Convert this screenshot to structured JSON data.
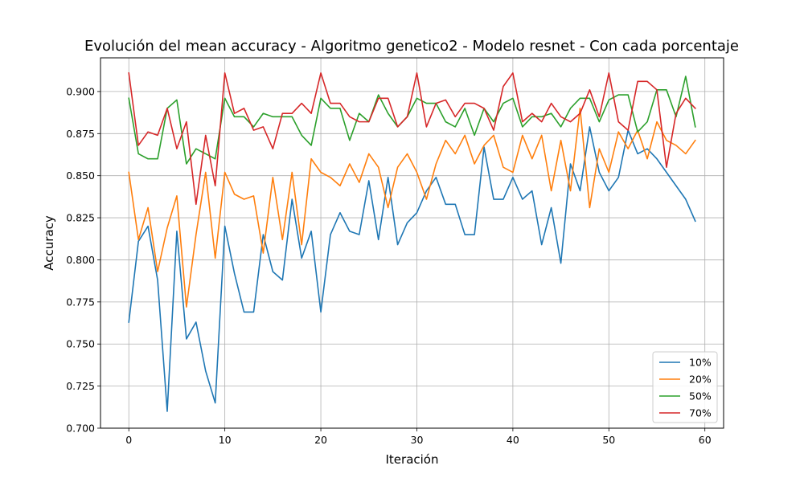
{
  "chart_data": {
    "type": "line",
    "title": "Evolución del mean accuracy - Algoritmo genetico2 - Modelo resnet - Con cada porcentaje",
    "xlabel": "Iteración",
    "ylabel": "Accuracy",
    "xlim": [
      -2.95,
      61.95
    ],
    "ylim": [
      0.7,
      0.92
    ],
    "xticks": [
      0,
      10,
      20,
      30,
      40,
      50,
      60
    ],
    "xtick_labels": [
      "0",
      "10",
      "20",
      "30",
      "40",
      "50",
      "60"
    ],
    "yticks": [
      0.7,
      0.725,
      0.75,
      0.775,
      0.8,
      0.825,
      0.85,
      0.875,
      0.9
    ],
    "ytick_labels": [
      "0.700",
      "0.725",
      "0.750",
      "0.775",
      "0.800",
      "0.825",
      "0.850",
      "0.875",
      "0.900"
    ],
    "grid": true,
    "legend_position": "bottom-right",
    "x": [
      0,
      1,
      2,
      3,
      4,
      5,
      6,
      7,
      8,
      9,
      10,
      11,
      12,
      13,
      14,
      15,
      16,
      17,
      18,
      19,
      20,
      21,
      22,
      23,
      24,
      25,
      26,
      27,
      28,
      29,
      30,
      31,
      32,
      33,
      34,
      35,
      36,
      37,
      38,
      39,
      40,
      41,
      42,
      43,
      44,
      45,
      46,
      47,
      48,
      49,
      50,
      51,
      52,
      53,
      54,
      55,
      56,
      57,
      58,
      59
    ],
    "series": [
      {
        "name": "10%",
        "color": "#1f77b4",
        "values": [
          0.763,
          0.811,
          0.82,
          0.788,
          0.71,
          0.817,
          0.753,
          0.763,
          0.734,
          0.715,
          0.82,
          0.792,
          0.769,
          0.769,
          0.815,
          0.793,
          0.788,
          0.836,
          0.801,
          0.817,
          0.769,
          0.815,
          0.828,
          0.817,
          0.815,
          0.847,
          0.812,
          0.849,
          0.809,
          0.822,
          0.828,
          0.841,
          0.849,
          0.833,
          0.833,
          0.815,
          0.815,
          0.867,
          0.836,
          0.836,
          0.849,
          0.836,
          0.841,
          0.809,
          0.831,
          0.798,
          0.857,
          0.841,
          0.879,
          0.852,
          0.841,
          0.849,
          0.877,
          0.863,
          0.866,
          0.86,
          0.852,
          0.844,
          0.836,
          0.823
        ]
      },
      {
        "name": "20%",
        "color": "#ff7f0e",
        "values": [
          0.852,
          0.812,
          0.831,
          0.793,
          0.819,
          0.838,
          0.772,
          0.815,
          0.852,
          0.801,
          0.852,
          0.839,
          0.836,
          0.838,
          0.804,
          0.849,
          0.812,
          0.852,
          0.809,
          0.86,
          0.852,
          0.849,
          0.844,
          0.857,
          0.846,
          0.863,
          0.855,
          0.831,
          0.855,
          0.863,
          0.852,
          0.836,
          0.857,
          0.871,
          0.863,
          0.874,
          0.857,
          0.868,
          0.874,
          0.855,
          0.852,
          0.874,
          0.86,
          0.874,
          0.841,
          0.871,
          0.841,
          0.89,
          0.831,
          0.866,
          0.852,
          0.876,
          0.866,
          0.877,
          0.86,
          0.882,
          0.871,
          0.868,
          0.863,
          0.871
        ]
      },
      {
        "name": "50%",
        "color": "#2ca02c",
        "values": [
          0.896,
          0.863,
          0.86,
          0.86,
          0.89,
          0.895,
          0.857,
          0.866,
          0.863,
          0.86,
          0.896,
          0.885,
          0.885,
          0.879,
          0.887,
          0.885,
          0.885,
          0.885,
          0.874,
          0.868,
          0.896,
          0.89,
          0.89,
          0.871,
          0.887,
          0.882,
          0.898,
          0.887,
          0.879,
          0.885,
          0.896,
          0.893,
          0.893,
          0.882,
          0.879,
          0.89,
          0.874,
          0.89,
          0.882,
          0.893,
          0.896,
          0.879,
          0.885,
          0.885,
          0.887,
          0.879,
          0.89,
          0.896,
          0.896,
          0.882,
          0.895,
          0.898,
          0.898,
          0.876,
          0.882,
          0.901,
          0.901,
          0.885,
          0.909,
          0.879
        ]
      },
      {
        "name": "70%",
        "color": "#d62728",
        "values": [
          0.911,
          0.868,
          0.876,
          0.874,
          0.89,
          0.866,
          0.882,
          0.833,
          0.874,
          0.844,
          0.911,
          0.887,
          0.89,
          0.877,
          0.879,
          0.866,
          0.887,
          0.887,
          0.893,
          0.887,
          0.911,
          0.893,
          0.893,
          0.885,
          0.882,
          0.882,
          0.896,
          0.896,
          0.879,
          0.885,
          0.911,
          0.879,
          0.893,
          0.895,
          0.885,
          0.893,
          0.893,
          0.89,
          0.877,
          0.903,
          0.911,
          0.882,
          0.887,
          0.882,
          0.893,
          0.885,
          0.882,
          0.887,
          0.901,
          0.885,
          0.911,
          0.882,
          0.877,
          0.906,
          0.906,
          0.901,
          0.855,
          0.887,
          0.896,
          0.89
        ]
      }
    ]
  }
}
